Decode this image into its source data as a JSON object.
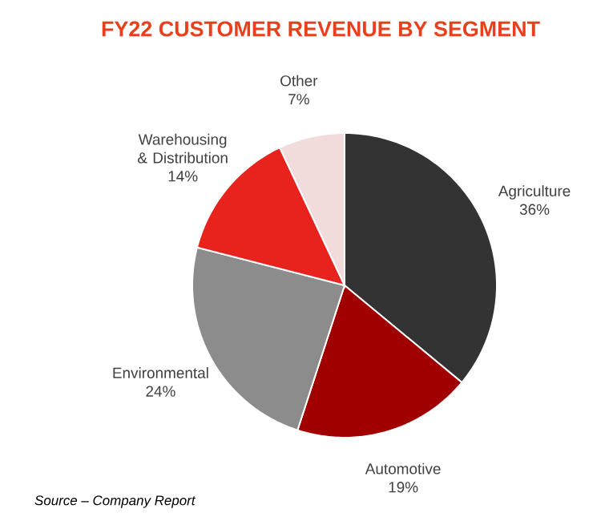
{
  "chart_data": {
    "type": "pie",
    "title": "FY22 CUSTOMER REVENUE BY SEGMENT",
    "categories": [
      "Agriculture",
      "Automotive",
      "Environmental",
      "Warehousing & Distribution",
      "Other"
    ],
    "values": [
      36,
      19,
      24,
      14,
      7
    ],
    "value_labels": [
      "36%",
      "19%",
      "24%",
      "14%",
      "7%"
    ],
    "colors": [
      "#333333",
      "#a00000",
      "#8c8c8c",
      "#e8231e",
      "#f2dcdb"
    ],
    "annotations": [
      "Source – Company Report"
    ]
  }
}
